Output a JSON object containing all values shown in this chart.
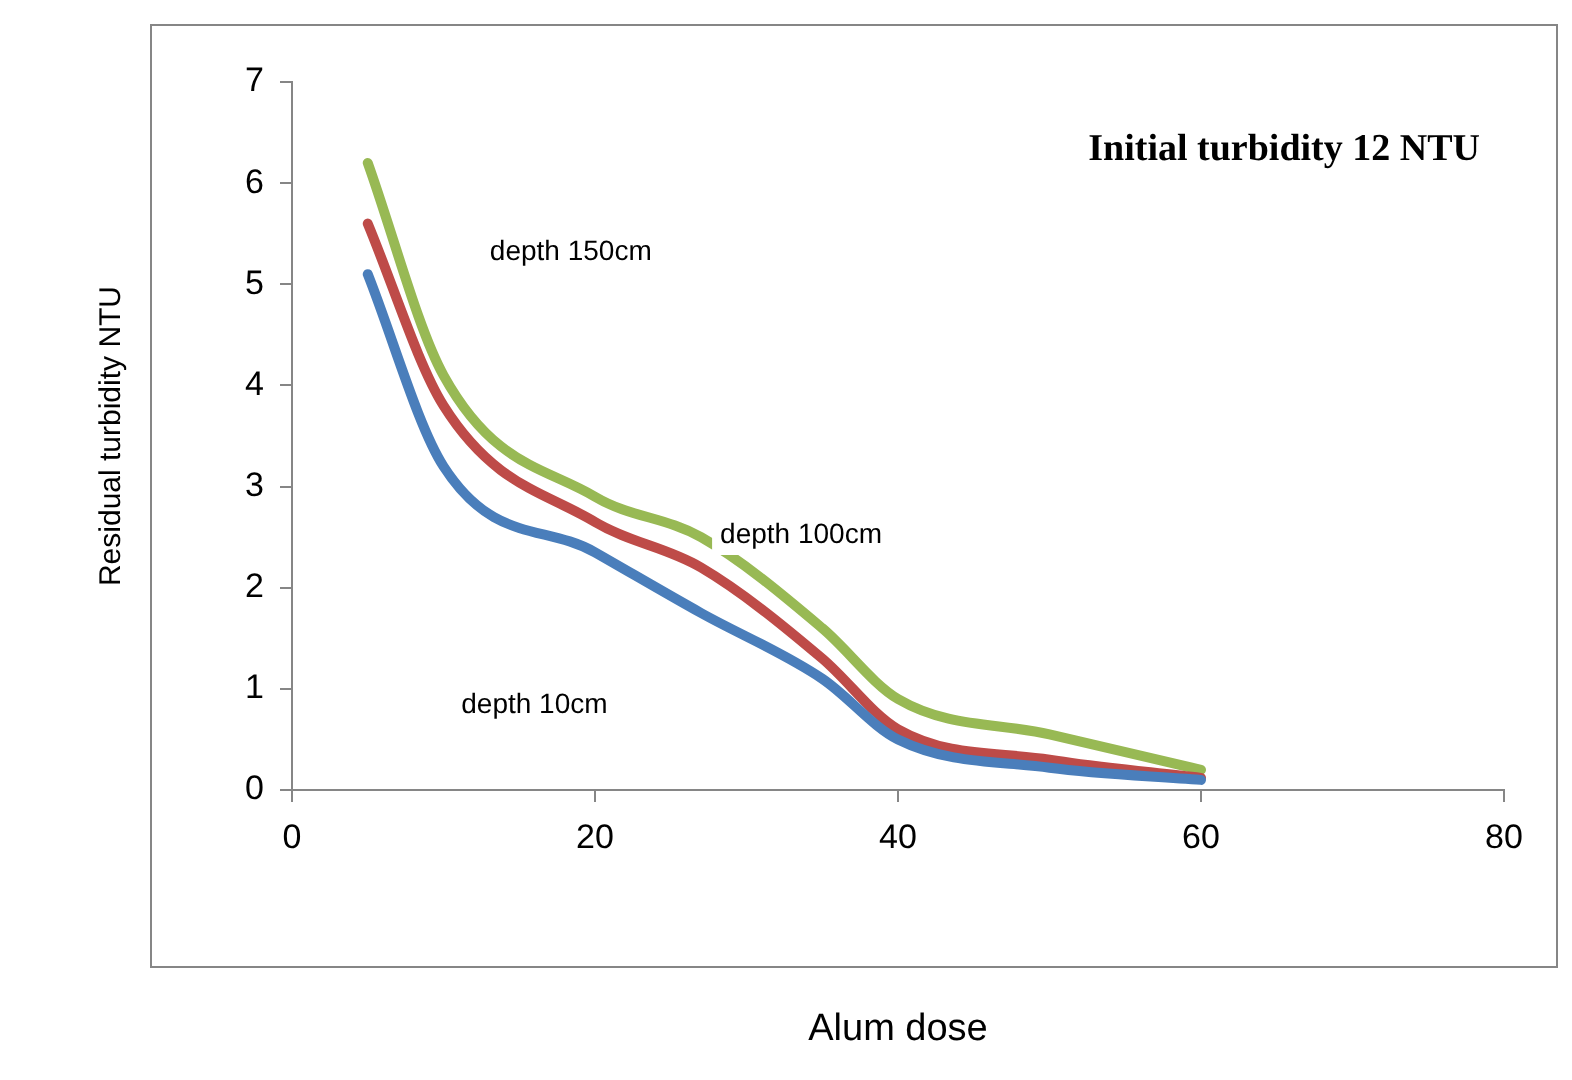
{
  "chart_data": {
    "type": "line",
    "title": "Initial turbidity 12 NTU",
    "xlabel": "Alum dose",
    "ylabel": "Residual turbidity NTU",
    "xlim": [
      0,
      80
    ],
    "xticks": [
      0,
      20,
      40,
      60,
      80
    ],
    "ylim": [
      0,
      7
    ],
    "yticks": [
      0,
      1,
      2,
      3,
      4,
      5,
      6,
      7
    ],
    "grid": false,
    "legend": false,
    "marker": "none",
    "line_style": "solid",
    "series": [
      {
        "color": "#4a7ebb",
        "x": [
          5,
          10,
          20,
          27,
          35,
          40,
          50,
          60
        ],
        "values": [
          5.1,
          3.2,
          2.35,
          1.75,
          1.1,
          0.5,
          0.22,
          0.1
        ]
      },
      {
        "color": "#be4b48",
        "x": [
          5,
          10,
          20,
          27,
          35,
          40,
          50,
          60
        ],
        "values": [
          5.6,
          3.8,
          2.65,
          2.2,
          1.3,
          0.6,
          0.3,
          0.12
        ]
      },
      {
        "color": "#98b954",
        "x": [
          5,
          10,
          20,
          27,
          35,
          40,
          50,
          60
        ],
        "values": [
          6.2,
          4.1,
          2.9,
          2.5,
          1.6,
          0.9,
          0.55,
          0.2
        ]
      }
    ],
    "annotations": [
      "depth 150cm",
      "depth 100cm",
      "depth 10cm"
    ]
  }
}
